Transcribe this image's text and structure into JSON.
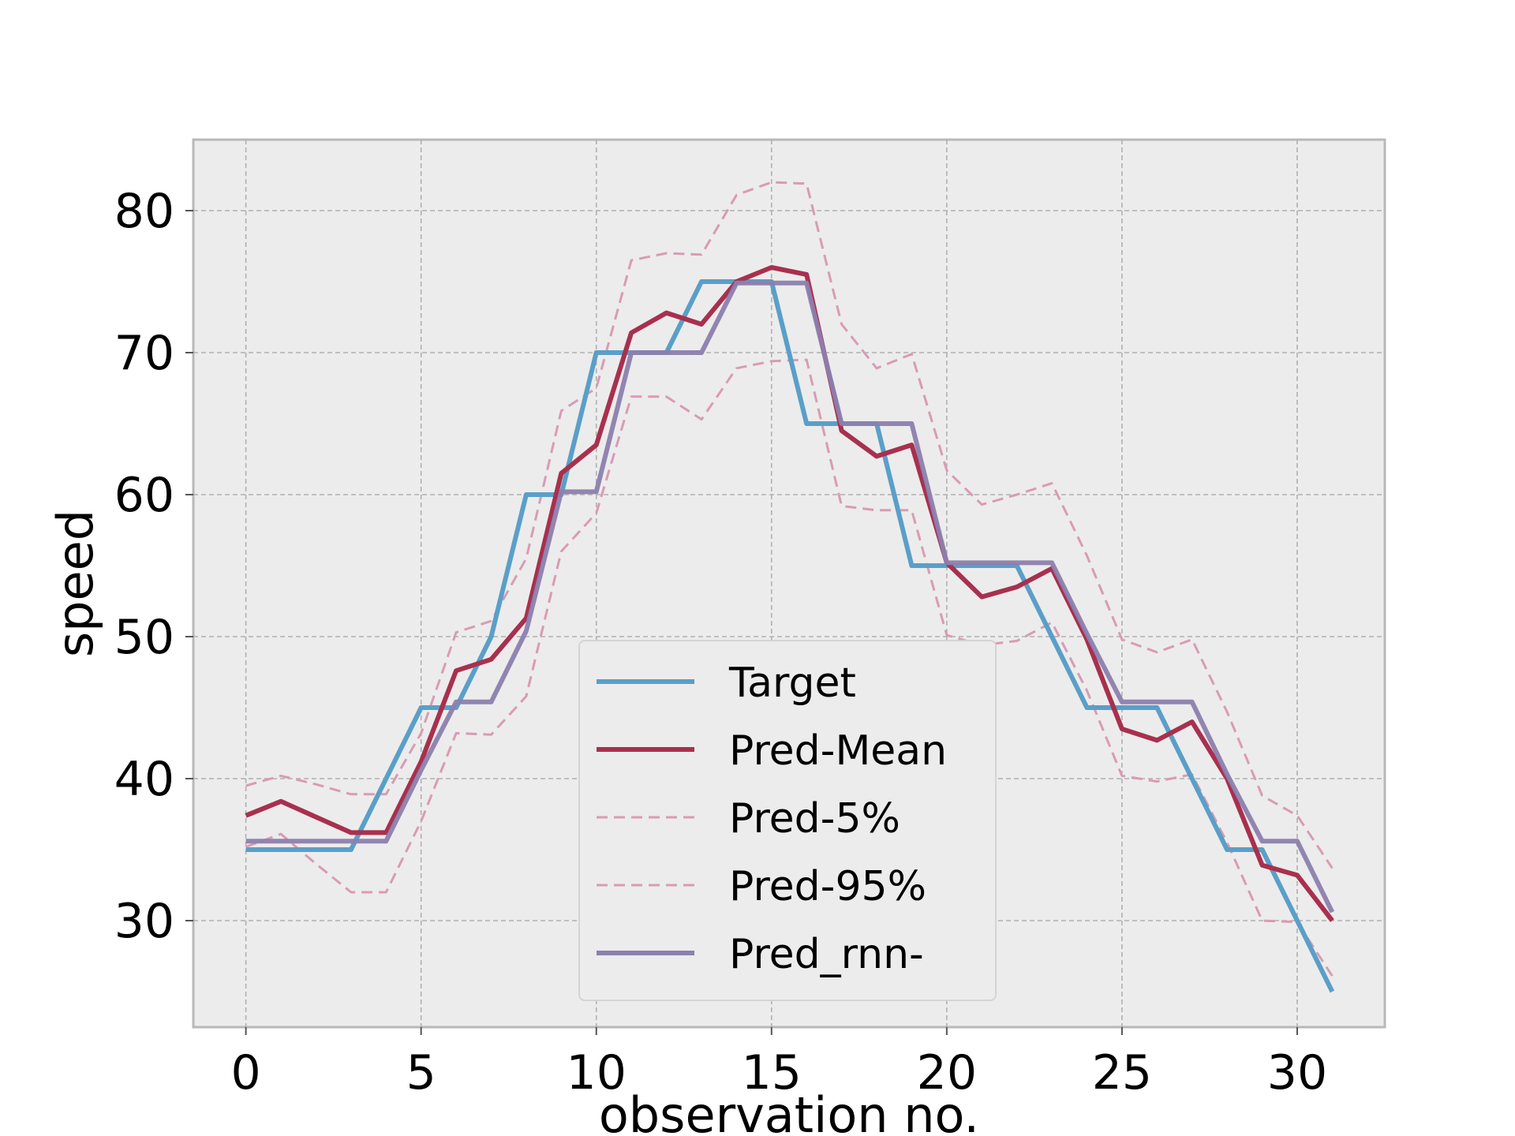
{
  "chart_data": {
    "type": "line",
    "title": "",
    "xlabel": "observation no.",
    "ylabel": "speed",
    "xlim": [
      -1.5,
      32.5
    ],
    "ylim": [
      22.5,
      85
    ],
    "xticks": [
      0,
      5,
      10,
      15,
      20,
      25,
      30
    ],
    "yticks": [
      30,
      40,
      50,
      60,
      70,
      80
    ],
    "grid": true,
    "legend_position": "lower-center",
    "x": [
      0,
      1,
      2,
      3,
      4,
      5,
      6,
      7,
      8,
      9,
      10,
      11,
      12,
      13,
      14,
      15,
      16,
      17,
      18,
      19,
      20,
      21,
      22,
      23,
      24,
      25,
      26,
      27,
      28,
      29,
      30,
      31
    ],
    "series": [
      {
        "name": "Target",
        "color": "#5a9fc8",
        "style": "solid",
        "values": [
          35,
          35,
          35,
          35,
          40,
          45,
          45,
          50,
          60,
          60,
          70,
          70,
          70,
          75,
          75,
          75,
          65,
          65,
          65,
          55,
          55,
          55,
          55,
          50,
          45,
          45,
          45,
          40,
          35,
          35,
          30,
          25
        ]
      },
      {
        "name": "Pred-Mean",
        "color": "#a8304e",
        "style": "solid",
        "values": [
          37.4,
          38.4,
          37.3,
          36.2,
          36.2,
          41.2,
          47.6,
          48.4,
          51.3,
          61.5,
          63.5,
          71.4,
          72.8,
          72.0,
          75.0,
          76.0,
          75.5,
          64.5,
          62.7,
          63.5,
          55.2,
          52.8,
          53.5,
          54.8,
          49.8,
          43.5,
          42.7,
          44.0,
          40.0,
          33.9,
          33.2,
          30.0
        ]
      },
      {
        "name": "Pred-5%",
        "color": "#d99bb5",
        "style": "dashed",
        "values": [
          35.2,
          36.1,
          34.0,
          32.0,
          32.0,
          37.0,
          43.2,
          43.1,
          45.8,
          56.0,
          58.7,
          66.9,
          66.9,
          65.3,
          68.9,
          69.4,
          69.5,
          59.2,
          58.9,
          58.9,
          50.1,
          49.4,
          49.7,
          51.0,
          46.2,
          40.2,
          39.8,
          40.3,
          35.5,
          30.0,
          29.9,
          26.1
        ]
      },
      {
        "name": "Pred-95%",
        "color": "#d99bb5",
        "style": "dashed",
        "values": [
          39.5,
          40.2,
          39.6,
          38.9,
          38.9,
          43.2,
          50.3,
          51.1,
          55.5,
          65.9,
          67.5,
          76.5,
          77.0,
          76.9,
          81.1,
          82.0,
          81.9,
          72.0,
          68.9,
          69.9,
          61.7,
          59.3,
          60.0,
          60.8,
          55.7,
          49.8,
          48.9,
          49.8,
          44.7,
          38.8,
          37.4,
          33.7
        ]
      },
      {
        "name": "Pred_rnn-",
        "color": "#8c80ae",
        "style": "solid",
        "values": [
          35.6,
          35.6,
          35.6,
          35.6,
          35.6,
          40.6,
          45.4,
          45.4,
          50.4,
          60.2,
          60.2,
          70.0,
          70.0,
          70.0,
          74.9,
          74.9,
          74.9,
          65.0,
          65.0,
          65.0,
          55.2,
          55.2,
          55.2,
          55.2,
          50.2,
          45.4,
          45.4,
          45.4,
          40.3,
          35.6,
          35.6,
          30.6
        ]
      }
    ]
  }
}
